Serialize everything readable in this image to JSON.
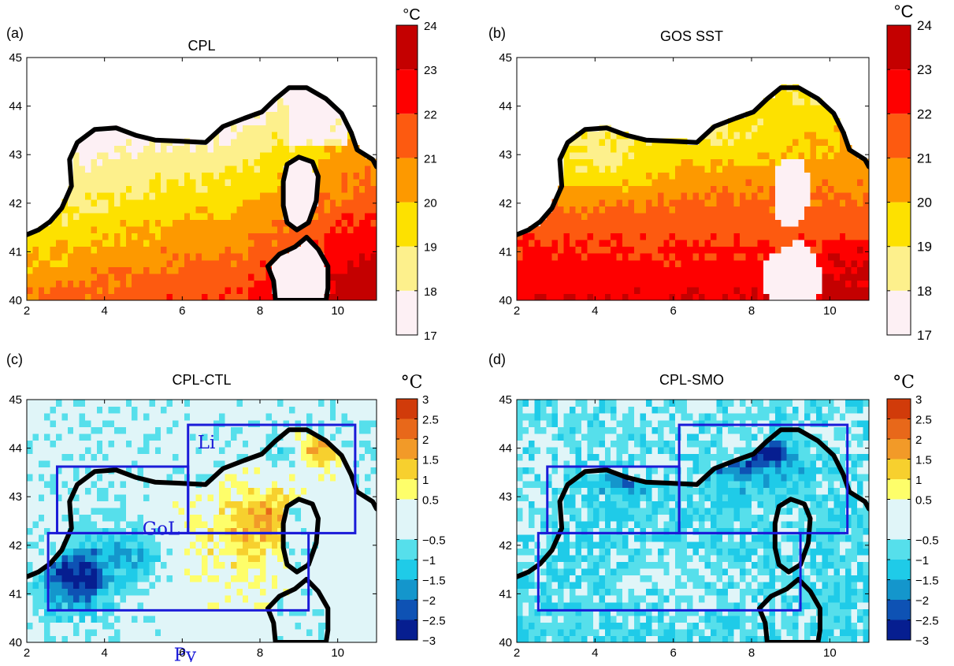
{
  "chart_data": [
    {
      "type": "heatmap",
      "panel_label": "(a)",
      "title": "CPL",
      "xticks": [
        2,
        4,
        6,
        8,
        10
      ],
      "yticks": [
        40,
        41,
        42,
        43,
        44,
        45
      ],
      "xlim": [
        2,
        11
      ],
      "ylim": [
        40,
        45
      ],
      "colorbar": {
        "unit": "°C",
        "ticks": [
          "17",
          "18",
          "19",
          "20",
          "21",
          "22",
          "23",
          "24"
        ],
        "colors": [
          "#fdf0f4",
          "#fdf08c",
          "#fde100",
          "#fd9900",
          "#fd5a10",
          "#fe0000",
          "#c40000"
        ]
      },
      "boxes": []
    },
    {
      "type": "heatmap",
      "panel_label": "(b)",
      "title": "GOS SST",
      "xticks": [
        2,
        4,
        6,
        8,
        10
      ],
      "yticks": [
        40,
        41,
        42,
        43,
        44,
        45
      ],
      "xlim": [
        2,
        11
      ],
      "ylim": [
        40,
        45
      ],
      "colorbar": {
        "unit": "°C",
        "ticks": [
          "17",
          "18",
          "19",
          "20",
          "21",
          "22",
          "23",
          "24"
        ],
        "colors": [
          "#fdf0f4",
          "#fdf08c",
          "#fde100",
          "#fd9900",
          "#fd5a10",
          "#fe0000",
          "#c40000"
        ]
      },
      "boxes": []
    },
    {
      "type": "heatmap",
      "panel_label": "(c)",
      "title": "CPL-CTL",
      "xticks": [
        2,
        4,
        6,
        8,
        10
      ],
      "yticks": [
        40,
        41,
        42,
        43,
        44,
        45
      ],
      "xlim": [
        2,
        11
      ],
      "ylim": [
        40,
        45
      ],
      "colorbar": {
        "unit": "°C",
        "ticks": [
          "3",
          "2.5",
          "2",
          "1.5",
          "1",
          "0.5",
          "−0.5",
          "−1",
          "−1.5",
          "−2",
          "−2.5",
          "−3"
        ],
        "colors": [
          "#d13b0a",
          "#e8681a",
          "#f29a28",
          "#f7d02e",
          "#fefe6a",
          "#e0f5f8",
          "#56dfeb",
          "#1fcbe8",
          "#1496cc",
          "#0e52b4",
          "#061e90"
        ]
      },
      "boxes": [
        {
          "name": "Li",
          "x0": 6.15,
          "x1": 10.45,
          "y0": 42.25,
          "y1": 44.48
        },
        {
          "name": "GoL",
          "x0": 2.78,
          "x1": 6.15,
          "y0": 42.25,
          "y1": 43.62
        },
        {
          "name": "Py",
          "x0": 2.55,
          "x1": 9.25,
          "y0": 40.66,
          "y1": 42.25
        }
      ]
    },
    {
      "type": "heatmap",
      "panel_label": "(d)",
      "title": "CPL-SMO",
      "xticks": [
        2,
        4,
        6,
        8,
        10
      ],
      "yticks": [
        40,
        41,
        42,
        43,
        44,
        45
      ],
      "xlim": [
        2,
        11
      ],
      "ylim": [
        40,
        45
      ],
      "colorbar": {
        "unit": "°C",
        "ticks": [
          "3",
          "2.5",
          "2",
          "1.5",
          "1",
          "0.5",
          "−0.5",
          "−1",
          "−1.5",
          "−2",
          "−2.5",
          "−3"
        ],
        "colors": [
          "#d13b0a",
          "#e8681a",
          "#f29a28",
          "#f7d02e",
          "#fefe6a",
          "#e0f5f8",
          "#56dfeb",
          "#1fcbe8",
          "#1496cc",
          "#0e52b4",
          "#061e90"
        ]
      },
      "boxes": [
        {
          "name": "",
          "x0": 6.15,
          "x1": 10.45,
          "y0": 42.25,
          "y1": 44.48
        },
        {
          "name": "",
          "x0": 2.78,
          "x1": 6.15,
          "y0": 42.25,
          "y1": 43.62
        },
        {
          "name": "",
          "x0": 2.55,
          "x1": 9.25,
          "y0": 40.66,
          "y1": 42.25
        }
      ]
    }
  ],
  "coastline": [
    [
      2.0,
      41.35
    ],
    [
      2.3,
      41.45
    ],
    [
      2.6,
      41.62
    ],
    [
      2.9,
      41.9
    ],
    [
      3.15,
      42.35
    ],
    [
      3.1,
      42.9
    ],
    [
      3.3,
      43.25
    ],
    [
      3.75,
      43.52
    ],
    [
      4.3,
      43.55
    ],
    [
      4.8,
      43.4
    ],
    [
      5.3,
      43.3
    ],
    [
      5.9,
      43.28
    ],
    [
      6.6,
      43.25
    ],
    [
      7.05,
      43.58
    ],
    [
      7.6,
      43.75
    ],
    [
      8.05,
      43.88
    ],
    [
      8.4,
      44.15
    ],
    [
      8.75,
      44.38
    ],
    [
      9.2,
      44.38
    ],
    [
      9.7,
      44.15
    ],
    [
      10.1,
      43.85
    ],
    [
      10.35,
      43.45
    ],
    [
      10.5,
      43.1
    ],
    [
      10.9,
      42.9
    ],
    [
      11.0,
      42.75
    ]
  ],
  "corsica": [
    [
      9.0,
      42.95
    ],
    [
      9.35,
      42.85
    ],
    [
      9.5,
      42.55
    ],
    [
      9.45,
      42.05
    ],
    [
      9.25,
      41.6
    ],
    [
      8.95,
      41.45
    ],
    [
      8.7,
      41.6
    ],
    [
      8.6,
      41.95
    ],
    [
      8.6,
      42.45
    ],
    [
      8.7,
      42.8
    ]
  ],
  "sardinia": [
    [
      9.2,
      41.3
    ],
    [
      9.5,
      41.05
    ],
    [
      9.75,
      40.7
    ],
    [
      9.75,
      40.25
    ],
    [
      9.7,
      40.0
    ],
    [
      8.4,
      40.0
    ],
    [
      8.35,
      40.4
    ],
    [
      8.2,
      40.7
    ],
    [
      8.5,
      40.95
    ],
    [
      8.9,
      41.1
    ]
  ]
}
